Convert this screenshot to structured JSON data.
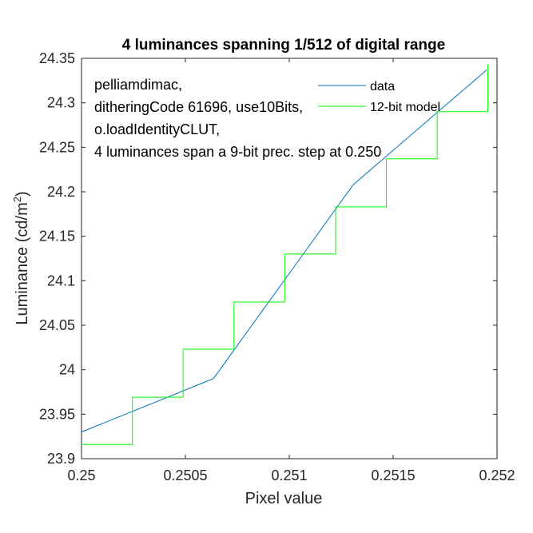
{
  "chart_data": {
    "type": "line",
    "title": "4 luminances spanning 1/512 of digital range",
    "xlabel": "Pixel value",
    "ylabel_main": "Luminance (cd/m",
    "ylabel_sup": "2",
    "ylabel_close": ")",
    "xlim": [
      0.25,
      0.252
    ],
    "ylim": [
      23.9,
      24.35
    ],
    "xticks": [
      0.25,
      0.2505,
      0.251,
      0.2515,
      0.252
    ],
    "xtick_labels": [
      "0.25",
      "0.2505",
      "0.251",
      "0.2515",
      "0.252"
    ],
    "yticks": [
      23.9,
      23.95,
      24.0,
      24.05,
      24.1,
      24.15,
      24.2,
      24.25,
      24.3,
      24.35
    ],
    "ytick_labels": [
      "23.9",
      "23.95",
      "24",
      "24.05",
      "24.1",
      "24.15",
      "24.2",
      "24.25",
      "24.3",
      "24.35"
    ],
    "grid": false,
    "annotation_lines": [
      "pelliamdimac,",
      "ditheringCode 61696, use10Bits,",
      "o.loadIdentityCLUT,",
      "4 luminances span a 9-bit prec. step at 0.250"
    ],
    "legend": {
      "position": "top-right"
    },
    "series": [
      {
        "name": "data",
        "color": "#0072bd",
        "x": [
          0.25,
          0.250635,
          0.251308,
          0.25195
        ],
        "y": [
          23.93,
          23.99,
          24.208,
          24.337
        ]
      },
      {
        "name": "12-bit model",
        "color": "#00ff00",
        "x": [
          0.25,
          0.250245,
          0.250245,
          0.250489,
          0.250489,
          0.250734,
          0.250734,
          0.250978,
          0.250978,
          0.251223,
          0.251223,
          0.251467,
          0.251467,
          0.251712,
          0.251712,
          0.251956,
          0.251956
        ],
        "y": [
          23.916,
          23.916,
          23.969,
          23.969,
          24.023,
          24.023,
          24.076,
          24.076,
          24.13,
          24.13,
          24.183,
          24.183,
          24.237,
          24.237,
          24.29,
          24.29,
          24.343
        ]
      }
    ]
  }
}
